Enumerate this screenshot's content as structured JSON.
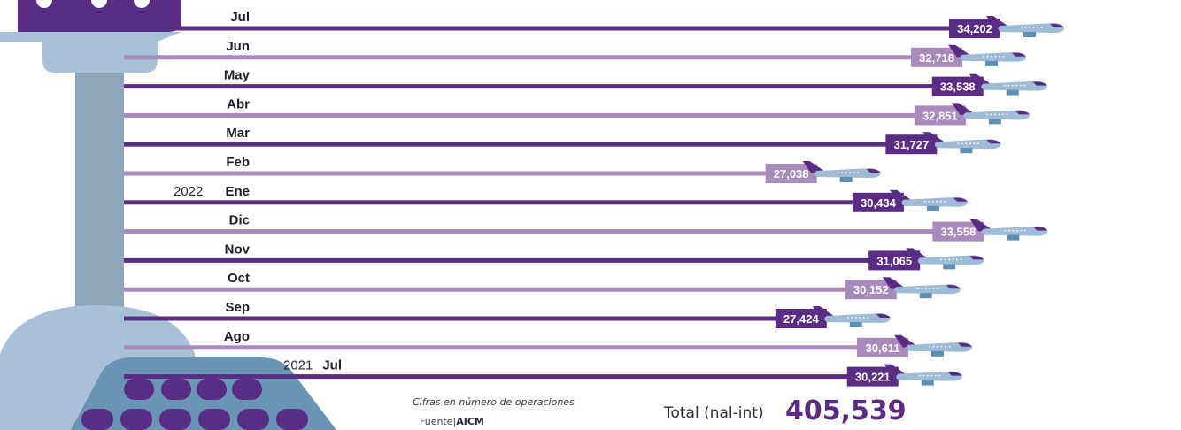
{
  "chart_data": {
    "type": "bar",
    "orientation": "horizontal",
    "categories": [
      "Jul",
      "Jun",
      "May",
      "Abr",
      "Mar",
      "Feb",
      "Ene",
      "Dic",
      "Nov",
      "Oct",
      "Sep",
      "Ago",
      "Jul"
    ],
    "year_labels": [
      {
        "index": 6,
        "text": "2022"
      },
      {
        "index": 12,
        "text": "2021"
      }
    ],
    "values": [
      34202,
      32718,
      33538,
      32851,
      31727,
      27038,
      30434,
      33558,
      31065,
      30152,
      27424,
      30611,
      30221
    ],
    "value_labels": [
      "34,202",
      "32,718",
      "33,538",
      "32,851",
      "31,727",
      "27,038",
      "30,434",
      "33,558",
      "31,065",
      "30,152",
      "27,424",
      "30,611",
      "30,221"
    ],
    "colors": {
      "dark": "#5a2d84",
      "light": "#a78bbd",
      "plane": "#9fbbd6",
      "plane_tail": "#5a2d84",
      "tower": "#8ea5bc",
      "tower_cab": "#a9c1d8",
      "dome": "#6a94b3"
    }
  },
  "note": "Cifras en número de operaciones",
  "source_label": "Fuente",
  "source_name": "AICM",
  "total_label": "Total (nal-int)",
  "total_value": "405,539"
}
